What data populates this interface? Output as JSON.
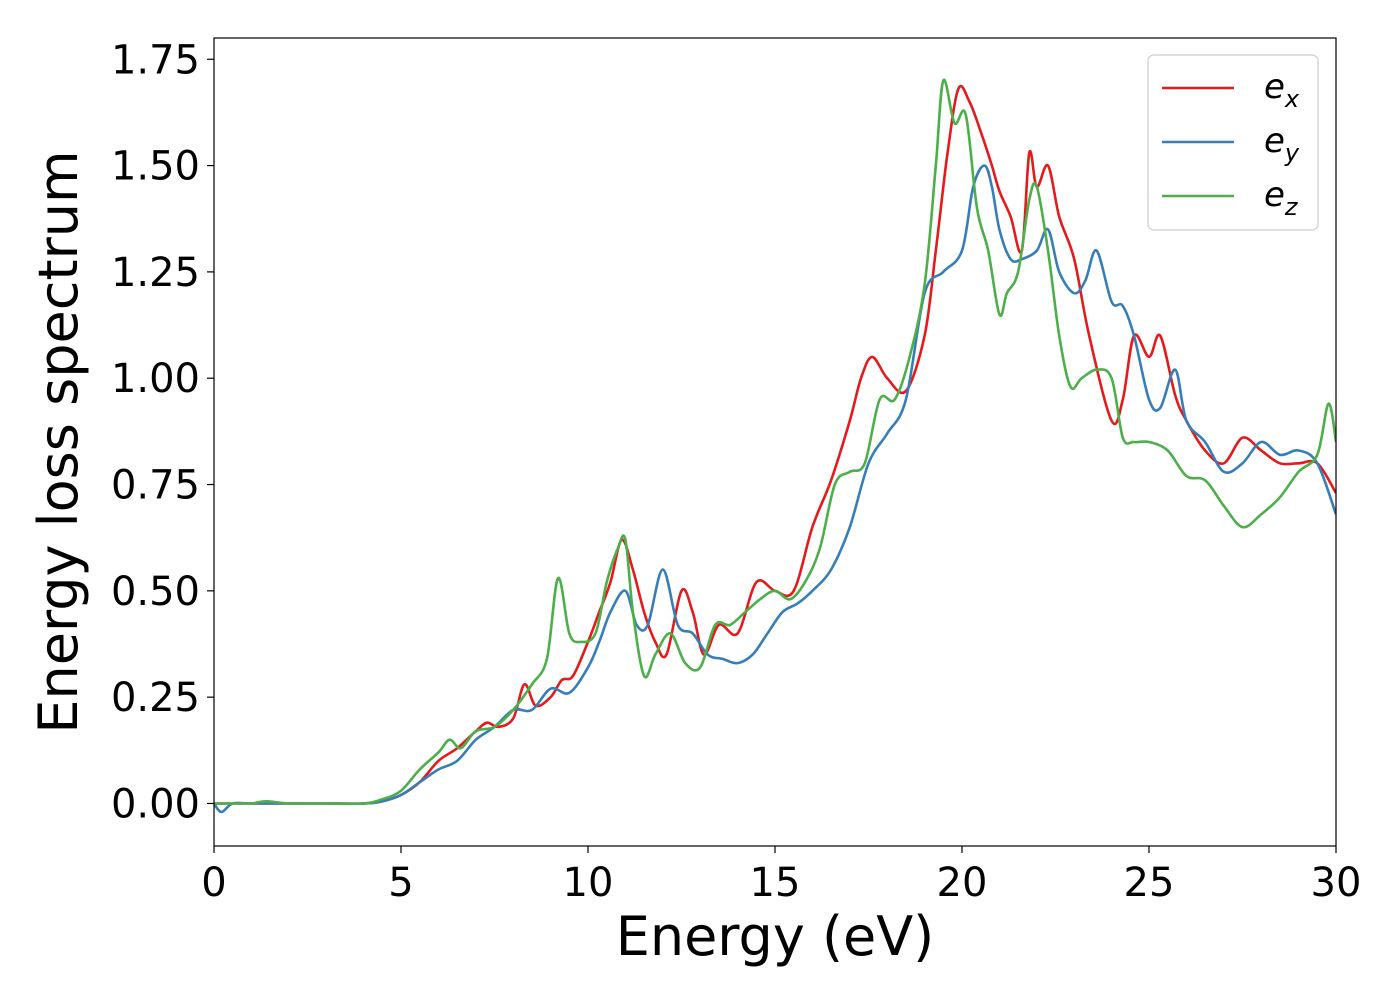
{
  "chart_data": {
    "type": "line",
    "xlabel": "Energy (eV)",
    "ylabel": "Energy loss spectrum",
    "xlim": [
      0,
      30
    ],
    "ylim": [
      -0.1,
      1.8
    ],
    "xticks": [
      "0",
      "5",
      "10",
      "15",
      "20",
      "25",
      "30"
    ],
    "yticks": [
      "0.00",
      "0.25",
      "0.50",
      "0.75",
      "1.00",
      "1.25",
      "1.50",
      "1.75"
    ],
    "legend_position": "top-right",
    "grid": false,
    "series": [
      {
        "base": "e",
        "sub": "x",
        "color": "#e41a1c",
        "x": [
          0,
          0.5,
          1,
          2,
          3,
          4,
          4.5,
          5,
          5.5,
          6,
          6.5,
          7,
          7.3,
          7.6,
          8,
          8.3,
          8.6,
          9,
          9.3,
          9.6,
          10,
          10.3,
          10.6,
          10.9,
          11.2,
          11.5,
          11.8,
          12.1,
          12.5,
          12.8,
          13.1,
          13.5,
          14,
          14.5,
          15,
          15.5,
          16,
          16.5,
          17,
          17.3,
          17.6,
          18,
          18.5,
          19,
          19.3,
          19.6,
          19.9,
          20.2,
          20.5,
          20.8,
          21,
          21.3,
          21.6,
          21.8,
          22,
          22.3,
          22.6,
          23,
          23.4,
          24,
          24.3,
          24.6,
          25,
          25.3,
          25.7,
          26,
          26.5,
          27,
          27.5,
          28,
          28.5,
          29,
          29.5,
          30
        ],
        "y": [
          0,
          0,
          0,
          0,
          0,
          0,
          0.005,
          0.02,
          0.05,
          0.1,
          0.13,
          0.17,
          0.19,
          0.18,
          0.2,
          0.28,
          0.23,
          0.25,
          0.29,
          0.3,
          0.38,
          0.45,
          0.52,
          0.62,
          0.55,
          0.45,
          0.38,
          0.35,
          0.5,
          0.45,
          0.35,
          0.42,
          0.4,
          0.52,
          0.5,
          0.5,
          0.65,
          0.76,
          0.9,
          1,
          1.05,
          1,
          0.97,
          1.1,
          1.3,
          1.52,
          1.68,
          1.65,
          1.58,
          1.5,
          1.44,
          1.38,
          1.3,
          1.53,
          1.45,
          1.5,
          1.38,
          1.28,
          1.1,
          0.9,
          0.95,
          1.1,
          1.05,
          1.1,
          0.96,
          0.9,
          0.83,
          0.8,
          0.86,
          0.83,
          0.8,
          0.8,
          0.8,
          0.73
        ]
      },
      {
        "base": "e",
        "sub": "y",
        "color": "#377eb8",
        "x": [
          0,
          0.2,
          0.5,
          1,
          2,
          3,
          4,
          4.5,
          5,
          5.5,
          6,
          6.5,
          7,
          7.5,
          8,
          8.5,
          9,
          9.5,
          10,
          10.3,
          10.6,
          11,
          11.3,
          11.6,
          12,
          12.4,
          12.8,
          13.2,
          13.6,
          14,
          14.4,
          14.8,
          15.2,
          15.6,
          16,
          16.5,
          17,
          17.5,
          18,
          18.5,
          19,
          19.5,
          20,
          20.3,
          20.6,
          20.8,
          21,
          21.3,
          21.6,
          22,
          22.3,
          22.6,
          23,
          23.3,
          23.6,
          24,
          24.3,
          24.6,
          25,
          25.3,
          25.7,
          26,
          26.5,
          27,
          27.5,
          28,
          28.5,
          29,
          29.5,
          30
        ],
        "y": [
          0,
          -0.02,
          0,
          0,
          0,
          0,
          0,
          0.005,
          0.02,
          0.05,
          0.08,
          0.1,
          0.15,
          0.18,
          0.22,
          0.22,
          0.27,
          0.26,
          0.32,
          0.38,
          0.45,
          0.5,
          0.42,
          0.42,
          0.55,
          0.42,
          0.4,
          0.35,
          0.34,
          0.33,
          0.35,
          0.4,
          0.45,
          0.47,
          0.5,
          0.55,
          0.65,
          0.8,
          0.87,
          0.95,
          1.2,
          1.25,
          1.3,
          1.45,
          1.5,
          1.45,
          1.35,
          1.28,
          1.28,
          1.3,
          1.35,
          1.25,
          1.2,
          1.23,
          1.3,
          1.18,
          1.17,
          1.1,
          0.95,
          0.93,
          1.02,
          0.9,
          0.85,
          0.78,
          0.8,
          0.85,
          0.82,
          0.83,
          0.8,
          0.68
        ]
      },
      {
        "base": "e",
        "sub": "z",
        "color": "#4daf4a",
        "x": [
          0,
          0.5,
          1,
          1.4,
          2,
          3,
          4,
          4.5,
          5,
          5.5,
          6,
          6.3,
          6.6,
          7,
          7.5,
          8,
          8.5,
          8.9,
          9.2,
          9.5,
          9.8,
          10.2,
          10.5,
          10.8,
          11,
          11.2,
          11.5,
          11.8,
          12.2,
          12.6,
          13,
          13.4,
          13.8,
          14.2,
          14.6,
          15,
          15.4,
          15.8,
          16.2,
          16.6,
          17,
          17.4,
          17.8,
          18.2,
          18.6,
          19,
          19.3,
          19.5,
          19.8,
          20.1,
          20.4,
          20.7,
          21,
          21.2,
          21.5,
          21.8,
          22,
          22.3,
          22.6,
          22.9,
          23.2,
          23.6,
          24,
          24.3,
          24.6,
          25,
          25.5,
          26,
          26.5,
          27,
          27.5,
          28,
          28.5,
          29,
          29.5,
          29.8,
          30
        ],
        "y": [
          0,
          0,
          0,
          0.005,
          0,
          0,
          0,
          0.01,
          0.03,
          0.08,
          0.12,
          0.15,
          0.13,
          0.17,
          0.18,
          0.22,
          0.28,
          0.34,
          0.53,
          0.4,
          0.38,
          0.4,
          0.52,
          0.6,
          0.62,
          0.45,
          0.3,
          0.35,
          0.4,
          0.33,
          0.32,
          0.42,
          0.42,
          0.45,
          0.48,
          0.5,
          0.48,
          0.52,
          0.6,
          0.75,
          0.78,
          0.8,
          0.95,
          0.95,
          1.05,
          1.22,
          1.5,
          1.7,
          1.6,
          1.62,
          1.4,
          1.3,
          1.15,
          1.2,
          1.25,
          1.42,
          1.45,
          1.3,
          1.1,
          0.98,
          1.0,
          1.02,
          1.0,
          0.86,
          0.85,
          0.85,
          0.83,
          0.77,
          0.76,
          0.7,
          0.65,
          0.68,
          0.72,
          0.78,
          0.82,
          0.94,
          0.85
        ]
      }
    ]
  }
}
